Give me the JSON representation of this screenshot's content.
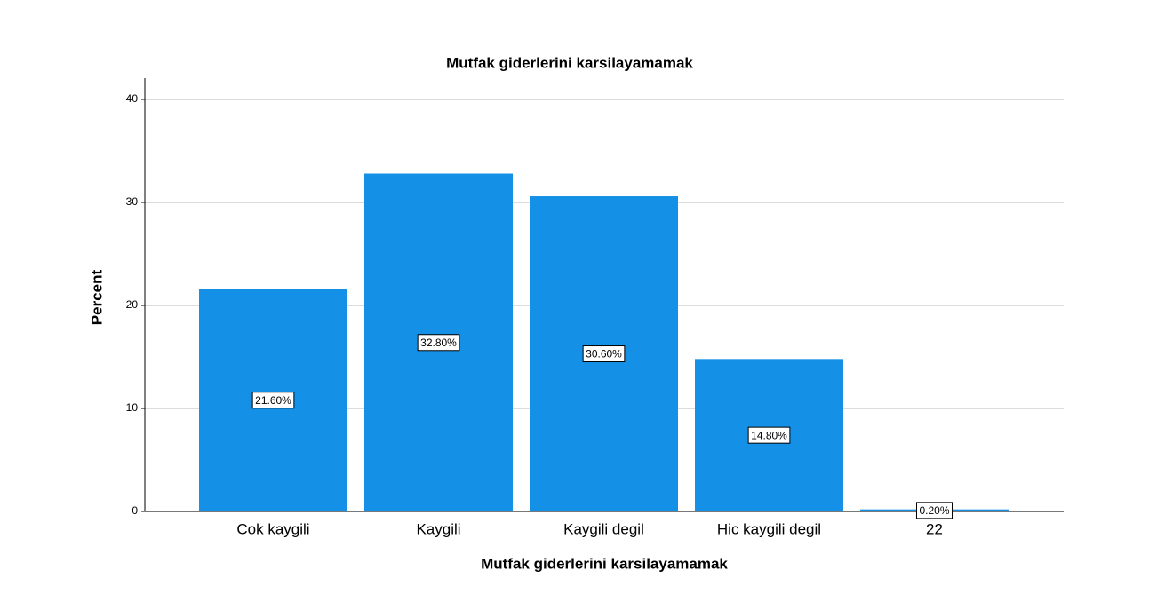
{
  "chart_data": {
    "type": "bar",
    "title": "Mutfak giderlerini karsilayamamak",
    "x_label": "Mutfak giderlerini karsilayamamak",
    "y_label": "Percent",
    "categories": [
      "Cok kaygili",
      "Kaygili",
      "Kaygili degil",
      "Hic kaygili degil",
      "22"
    ],
    "values": [
      21.6,
      32.8,
      30.6,
      14.8,
      0.2
    ],
    "value_labels": [
      "21.60%",
      "32.80%",
      "30.60%",
      "14.80%",
      "0.20%"
    ],
    "color": "#1490e6",
    "ylim": [
      0,
      40
    ],
    "yticks": [
      0,
      10,
      20,
      30,
      40
    ],
    "grid": true
  }
}
